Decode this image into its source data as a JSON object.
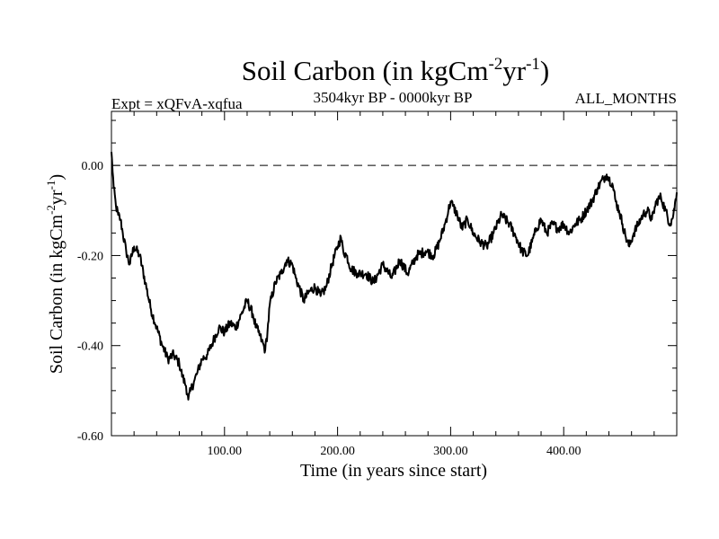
{
  "chart_data": {
    "type": "line",
    "title": "Soil Carbon (in kgCm",
    "title_exp1": "-2",
    "title_mid": "yr",
    "title_exp2": "-1",
    "title_end": ")",
    "left_annotation": "Expt = xQFvA-xqfua",
    "center_annotation": "3504kyr BP - 0000kyr BP",
    "right_annotation": "ALL_MONTHS",
    "xlabel": "Time (in years since start)",
    "ylabel": "Soil Carbon (in kgCm",
    "ylabel_exp1": "-2",
    "ylabel_mid": "yr",
    "ylabel_exp2": "-1",
    "ylabel_end": ")",
    "xlim": [
      0,
      500
    ],
    "ylim": [
      -0.6,
      0.12
    ],
    "x_ticks": [
      100,
      200,
      300,
      400
    ],
    "x_tick_labels": [
      "100.00",
      "200.00",
      "300.00",
      "400.00"
    ],
    "y_ticks": [
      0.0,
      -0.2,
      -0.4,
      -0.6
    ],
    "y_tick_labels": [
      "0.00",
      "-0.20",
      "-0.40",
      "-0.60"
    ],
    "reference_line": 0.0,
    "series": [
      {
        "name": "Soil Carbon",
        "color": "#000000",
        "x": [
          0,
          2,
          4,
          6,
          8,
          10,
          13,
          16,
          20,
          25,
          30,
          35,
          40,
          45,
          50,
          55,
          60,
          63,
          66,
          68,
          70,
          73,
          76,
          80,
          85,
          90,
          95,
          100,
          105,
          110,
          115,
          120,
          125,
          128,
          130,
          133,
          136,
          138,
          140,
          145,
          150,
          155,
          160,
          163,
          166,
          170,
          175,
          180,
          185,
          190,
          195,
          200,
          203,
          205,
          208,
          212,
          218,
          225,
          232,
          240,
          248,
          255,
          262,
          270,
          278,
          285,
          290,
          295,
          298,
          300,
          302,
          306,
          310,
          315,
          320,
          326,
          332,
          338,
          345,
          352,
          358,
          363,
          368,
          372,
          376,
          380,
          385,
          390,
          395,
          400,
          405,
          410,
          415,
          420,
          425,
          430,
          435,
          438,
          440,
          443,
          446,
          449,
          452,
          455,
          458,
          462,
          466,
          470,
          474,
          478,
          482,
          486,
          490,
          494,
          497,
          500
        ],
        "values": [
          0.03,
          -0.05,
          -0.09,
          -0.11,
          -0.12,
          -0.15,
          -0.19,
          -0.22,
          -0.18,
          -0.2,
          -0.26,
          -0.32,
          -0.36,
          -0.4,
          -0.43,
          -0.42,
          -0.44,
          -0.47,
          -0.49,
          -0.52,
          -0.5,
          -0.48,
          -0.46,
          -0.43,
          -0.42,
          -0.39,
          -0.36,
          -0.37,
          -0.35,
          -0.36,
          -0.33,
          -0.3,
          -0.33,
          -0.36,
          -0.37,
          -0.39,
          -0.41,
          -0.37,
          -0.31,
          -0.26,
          -0.24,
          -0.21,
          -0.22,
          -0.25,
          -0.27,
          -0.3,
          -0.28,
          -0.27,
          -0.29,
          -0.27,
          -0.22,
          -0.18,
          -0.16,
          -0.19,
          -0.2,
          -0.23,
          -0.24,
          -0.24,
          -0.26,
          -0.22,
          -0.25,
          -0.21,
          -0.24,
          -0.2,
          -0.19,
          -0.2,
          -0.17,
          -0.13,
          -0.1,
          -0.08,
          -0.09,
          -0.11,
          -0.14,
          -0.12,
          -0.15,
          -0.17,
          -0.18,
          -0.15,
          -0.11,
          -0.13,
          -0.16,
          -0.19,
          -0.2,
          -0.17,
          -0.14,
          -0.12,
          -0.15,
          -0.13,
          -0.14,
          -0.13,
          -0.15,
          -0.13,
          -0.12,
          -0.1,
          -0.08,
          -0.05,
          -0.03,
          -0.02,
          -0.03,
          -0.04,
          -0.08,
          -0.1,
          -0.13,
          -0.16,
          -0.18,
          -0.15,
          -0.13,
          -0.11,
          -0.1,
          -0.12,
          -0.08,
          -0.07,
          -0.1,
          -0.13,
          -0.11,
          -0.06
        ]
      }
    ]
  }
}
